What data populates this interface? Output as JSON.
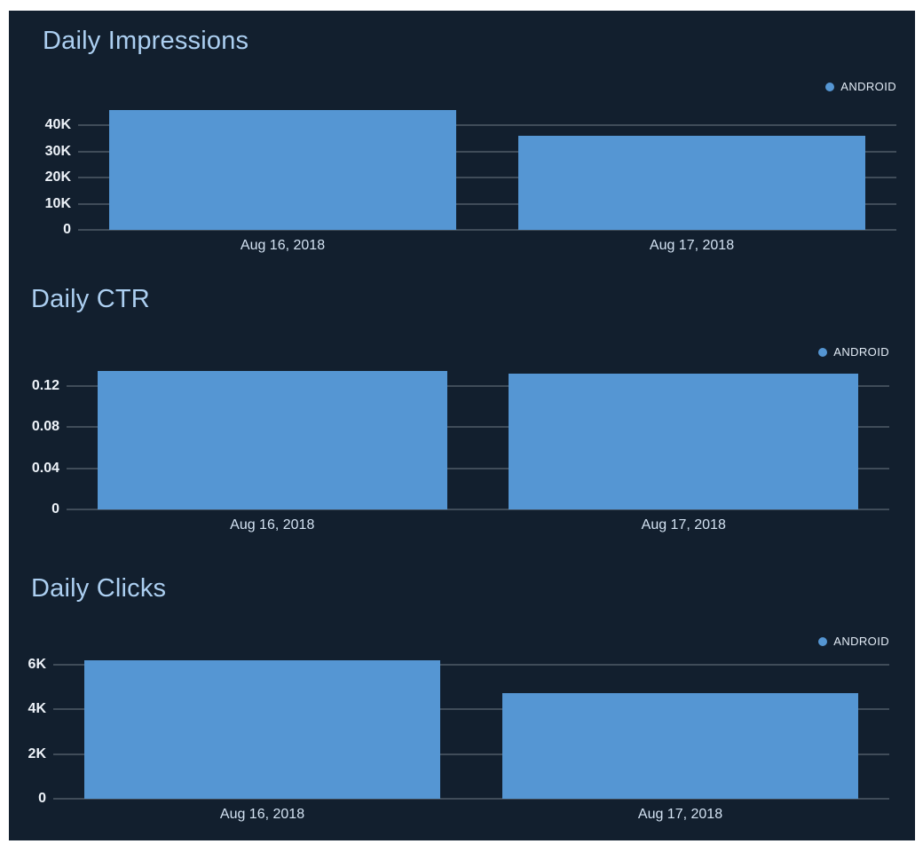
{
  "colors": {
    "page_background": "#ffffff",
    "panel_background": "#121f2e",
    "bar": "#5596d3",
    "gridline": "#404c59",
    "title_text": "#accff1",
    "tick_text": "#eef3f9",
    "date_text": "#d3e2f2",
    "legend_text": "#e4edf7"
  },
  "chart_data": [
    {
      "type": "bar",
      "title": "Daily Impressions",
      "legend": "ANDROID",
      "legend_position": "top-right",
      "grid": true,
      "categories": [
        "Aug 16, 2018",
        "Aug 17, 2018"
      ],
      "values": [
        45800,
        36000
      ],
      "ylim": [
        0,
        49300
      ],
      "yticks": [
        {
          "value": 0,
          "label": "0"
        },
        {
          "value": 10000,
          "label": "10K"
        },
        {
          "value": 20000,
          "label": "20K"
        },
        {
          "value": 30000,
          "label": "30K"
        },
        {
          "value": 40000,
          "label": "40K"
        }
      ]
    },
    {
      "type": "bar",
      "title": "Daily CTR",
      "legend": "ANDROID",
      "legend_position": "top-right",
      "grid": true,
      "categories": [
        "Aug 16, 2018",
        "Aug 17, 2018"
      ],
      "values": [
        0.135,
        0.132
      ],
      "ylim": [
        0,
        0.139
      ],
      "yticks": [
        {
          "value": 0,
          "label": "0"
        },
        {
          "value": 0.04,
          "label": "0.04"
        },
        {
          "value": 0.08,
          "label": "0.08"
        },
        {
          "value": 0.12,
          "label": "0.12"
        }
      ]
    },
    {
      "type": "bar",
      "title": "Daily Clicks",
      "legend": "ANDROID",
      "legend_position": "top-right",
      "grid": true,
      "categories": [
        "Aug 16, 2018",
        "Aug 17, 2018"
      ],
      "values": [
        6200,
        4750
      ],
      "ylim": [
        0,
        6360
      ],
      "yticks": [
        {
          "value": 0,
          "label": "0"
        },
        {
          "value": 2000,
          "label": "2K"
        },
        {
          "value": 4000,
          "label": "4K"
        },
        {
          "value": 6000,
          "label": "6K"
        }
      ]
    }
  ]
}
